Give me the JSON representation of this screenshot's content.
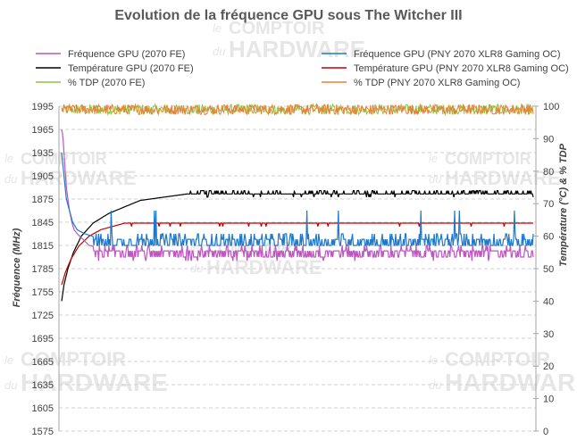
{
  "chart_data": {
    "type": "line",
    "title": "Evolution de la fréquence GPU sous The Witcher III",
    "ylabel": "Fréquence (MHz)",
    "y2label": "Température (°C) & % TDP",
    "ylim": [
      1575,
      1995
    ],
    "y2lim": [
      0,
      100
    ],
    "yticks": [
      1995,
      1965,
      1935,
      1905,
      1875,
      1845,
      1815,
      1785,
      1755,
      1725,
      1695,
      1665,
      1635,
      1605,
      1575
    ],
    "y2ticks": [
      100,
      90,
      80,
      70,
      60,
      50,
      40,
      30,
      20,
      10,
      0
    ],
    "legend_position": "top",
    "grid": true,
    "series": [
      {
        "name": "Fréquence GPU (2070 FE)",
        "axis": "left",
        "color": "#bf55c0",
        "profile": [
          [
            0,
            1965
          ],
          [
            1,
            1960
          ],
          [
            2,
            1950
          ],
          [
            3,
            1935
          ],
          [
            4,
            1920
          ],
          [
            5,
            1905
          ],
          [
            6,
            1890
          ],
          [
            8,
            1875
          ],
          [
            10,
            1860
          ],
          [
            13,
            1845
          ],
          [
            16,
            1835
          ],
          [
            20,
            1830
          ],
          [
            25,
            1825
          ],
          [
            35,
            1815
          ],
          [
            60,
            1810
          ],
          [
            100,
            1808
          ],
          [
            600,
            1808
          ]
        ],
        "settled": 1808,
        "dips": [
          1800,
          1815
        ]
      },
      {
        "name": "Température GPU  (2070 FE)",
        "axis": "right",
        "color": "#000000",
        "profile": [
          [
            0,
            40
          ],
          [
            3,
            45
          ],
          [
            8,
            50
          ],
          [
            15,
            55
          ],
          [
            25,
            60
          ],
          [
            40,
            64
          ],
          [
            60,
            67
          ],
          [
            80,
            69
          ],
          [
            100,
            71
          ],
          [
            130,
            72
          ],
          [
            160,
            73
          ],
          [
            600,
            73
          ]
        ],
        "settled": 73
      },
      {
        "name": "% TDP (2070 FE)",
        "axis": "right",
        "color": "#8cc63f",
        "profile": [
          [
            0,
            99
          ],
          [
            600,
            99
          ]
        ],
        "settled": 99
      },
      {
        "name": "Fréquence GPU (PNY 2070 XLR8 Gaming OC)",
        "axis": "left",
        "color": "#1f78c8",
        "profile": [
          [
            0,
            1935
          ],
          [
            3,
            1905
          ],
          [
            6,
            1875
          ],
          [
            10,
            1860
          ],
          [
            14,
            1845
          ],
          [
            20,
            1835
          ],
          [
            30,
            1830
          ],
          [
            45,
            1825
          ],
          [
            70,
            1820
          ],
          [
            100,
            1818
          ],
          [
            600,
            1818
          ]
        ],
        "settled": 1818,
        "dips": [
          1810,
          1830
        ]
      },
      {
        "name": "Température GPU (PNY 2070 XLR8 Gaming OC)",
        "axis": "right",
        "color": "#c00000",
        "profile": [
          [
            0,
            45
          ],
          [
            5,
            49
          ],
          [
            12,
            53
          ],
          [
            22,
            57
          ],
          [
            35,
            60
          ],
          [
            50,
            62
          ],
          [
            65,
            63
          ],
          [
            80,
            64
          ],
          [
            600,
            64
          ]
        ],
        "settled": 64
      },
      {
        "name": "% TDP (PNY 2070 XLR8 Gaming OC)",
        "axis": "right",
        "color": "#ed7d31",
        "profile": [
          [
            0,
            99
          ],
          [
            600,
            99
          ]
        ],
        "settled": 99
      }
    ]
  }
}
